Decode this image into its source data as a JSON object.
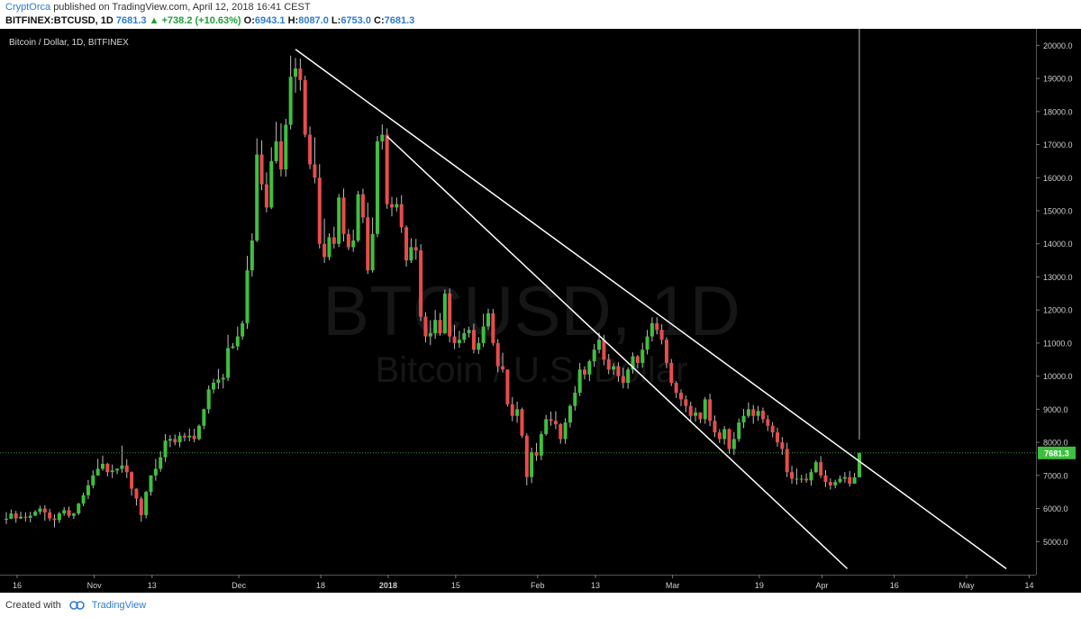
{
  "header": {
    "publisher": "CryptOrca",
    "published_text": "published on TradingView.com, April 12, 2018 16:41 CEST",
    "symbol": "BITFINEX:BTCUSD, 1D",
    "last": "7681.3",
    "change": "▲ +738.2 (+10.63%)",
    "o_label": "O:",
    "o": "6943.1",
    "h_label": "H:",
    "h": "8087.0",
    "l_label": "L:",
    "l": "6753.0",
    "c_label": "C:",
    "c": "7681.3"
  },
  "footer": {
    "created_with": "Created with",
    "brand": "TradingView"
  },
  "colors": {
    "background": "#000000",
    "up": "#3fbf3f",
    "down": "#e84c4c",
    "trendline": "#ffffff",
    "price_label": "#3fbf3f",
    "link": "#2e7bcf"
  },
  "chart_data": {
    "type": "candlestick",
    "title": "Bitcoin / Dollar, 1D, BITFINEX",
    "watermark_main": "BTCUSD, 1D",
    "watermark_sub": "Bitcoin / U.S. Dollar",
    "ylim": [
      4000,
      20500
    ],
    "y_ticks": [
      5000,
      6000,
      7000,
      8000,
      9000,
      10000,
      11000,
      12000,
      13000,
      14000,
      15000,
      16000,
      17000,
      18000,
      19000,
      20000
    ],
    "y_tick_labels": [
      "5000.0",
      "6000.0",
      "7000.0",
      "8000.0",
      "9000.0",
      "10000.0",
      "11000.0",
      "12000.0",
      "13000.0",
      "14000.0",
      "15000.0",
      "16000.0",
      "17000.0",
      "18000.0",
      "19000.0",
      "20000.0"
    ],
    "x_tick_labels": [
      {
        "label": "16",
        "day": 0
      },
      {
        "label": "Nov",
        "day": 16
      },
      {
        "label": "13",
        "day": 28
      },
      {
        "label": "Dec",
        "day": 46
      },
      {
        "label": "18",
        "day": 63
      },
      {
        "label": "2018",
        "day": 77
      },
      {
        "label": "15",
        "day": 91
      },
      {
        "label": "Feb",
        "day": 108
      },
      {
        "label": "13",
        "day": 120
      },
      {
        "label": "Mar",
        "day": 136
      },
      {
        "label": "19",
        "day": 154
      },
      {
        "label": "Apr",
        "day": 167
      },
      {
        "label": "16",
        "day": 182
      },
      {
        "label": "May",
        "day": 197
      },
      {
        "label": "14",
        "day": 210
      }
    ],
    "last_price": 7681.3,
    "last_price_label": "7681.3",
    "closes": [
      5690,
      5850,
      5700,
      5750,
      5720,
      5780,
      5900,
      6000,
      5880,
      5700,
      5650,
      5850,
      5950,
      5780,
      5850,
      6150,
      6400,
      6700,
      7000,
      7200,
      7350,
      7100,
      7150,
      7200,
      7300,
      7100,
      6600,
      6300,
      5800,
      6500,
      7000,
      7200,
      7550,
      8050,
      8100,
      8000,
      8200,
      8150,
      8200,
      8100,
      8500,
      9000,
      9600,
      9800,
      9900,
      9950,
      10850,
      10900,
      11200,
      11600,
      13200,
      14100,
      16700,
      15800,
      15100,
      16500,
      17100,
      16250,
      17600,
      19050,
      19300,
      18950,
      17300,
      16400,
      16000,
      14000,
      13600,
      14200,
      14000,
      15400,
      14300,
      13900,
      14100,
      15500,
      14800,
      13200,
      14300,
      17100,
      17300,
      15200,
      15100,
      15200,
      14500,
      13500,
      13900,
      13800,
      11800,
      11200,
      11300,
      11700,
      11300,
      12500,
      11200,
      11000,
      11100,
      11300,
      11400,
      10800,
      11000,
      11500,
      11900,
      11000,
      10300,
      10200,
      9150,
      8800,
      9000,
      8200,
      6950,
      7700,
      7600,
      8250,
      8700,
      8650,
      8550,
      8100,
      8600,
      9100,
      9500,
      10200,
      10050,
      10450,
      10800,
      11100,
      10500,
      10200,
      10300,
      10000,
      9800,
      10200,
      10600,
      10400,
      10800,
      11200,
      11600,
      11400,
      11100,
      10400,
      9800,
      9500,
      9300,
      9100,
      8800,
      8900,
      8700,
      9300,
      8650,
      8300,
      8100,
      8400,
      7800,
      8100,
      8600,
      8800,
      9000,
      8800,
      8950,
      8700,
      8500,
      8300,
      8000,
      7800,
      7100,
      6900,
      6900,
      6900,
      6850,
      7100,
      7400,
      7000,
      6800,
      6700,
      6800,
      6900,
      6950,
      6750,
      6943.1,
      7681.3
    ],
    "highs": [
      5890,
      5970,
      5930,
      5900,
      5880,
      5900,
      5950,
      6080,
      6100,
      5990,
      5820,
      5900,
      6040,
      6060,
      5870,
      6170,
      6480,
      6860,
      7150,
      7500,
      7600,
      7380,
      7330,
      7210,
      7900,
      7490,
      7120,
      6610,
      6360,
      6530,
      7000,
      7500,
      7730,
      8250,
      8220,
      8240,
      8310,
      8290,
      8420,
      8410,
      8540,
      9020,
      9720,
      9920,
      10220,
      10070,
      11250,
      11000,
      11500,
      11680,
      13640,
      14320,
      17190,
      17130,
      16160,
      16920,
      17690,
      17640,
      17780,
      19690,
      19620,
      19600,
      19080,
      17550,
      17220,
      16410,
      14760,
      14320,
      14520,
      15510,
      15670,
      14450,
      14430,
      15600,
      15670,
      15250,
      14800,
      17260,
      17610,
      17490,
      15420,
      15400,
      15470,
      14560,
      14170,
      14150,
      13990,
      11940,
      11690,
      12000,
      11910,
      12620,
      12650,
      11550,
      11370,
      11450,
      11500,
      11590,
      11180,
      11890,
      12040,
      12030,
      11120,
      10710,
      10200,
      9370,
      9230,
      9050,
      8270,
      7840,
      7980,
      8340,
      8830,
      8930,
      8940,
      8580,
      8730,
      9150,
      9700,
      10400,
      10300,
      10500,
      10970,
      11320,
      11250,
      10670,
      10390,
      10420,
      10260,
      10270,
      10720,
      10640,
      11010,
      11400,
      11780,
      11780,
      11570,
      11180,
      10520,
      9850,
      9600,
      9420,
      9230,
      9050,
      8910,
      9370,
      9470,
      8810,
      8400,
      8490,
      8420,
      8310,
      8720,
      9010,
      9210,
      9130,
      9100,
      9050,
      8820,
      8610,
      8440,
      8160,
      7990,
      7290,
      7210,
      7020,
      7060,
      7200,
      7460,
      7580,
      7160,
      6910,
      6870,
      7000,
      7100,
      7130,
      7080,
      8087
    ],
    "lows": [
      5530,
      5680,
      5570,
      5680,
      5610,
      5580,
      5780,
      5820,
      5630,
      5620,
      5430,
      5560,
      5780,
      5720,
      5680,
      5800,
      6070,
      6290,
      6610,
      6990,
      7140,
      6970,
      6920,
      7040,
      7080,
      6920,
      6390,
      6090,
      5600,
      5700,
      6390,
      6840,
      7110,
      7410,
      7850,
      7910,
      7850,
      8030,
      8030,
      8000,
      8060,
      8400,
      8870,
      9480,
      9610,
      9630,
      9850,
      10830,
      10780,
      11100,
      11430,
      13010,
      14050,
      15620,
      14950,
      15050,
      16430,
      16040,
      16030,
      17460,
      18570,
      18630,
      17220,
      16260,
      15830,
      13860,
      13420,
      13510,
      13860,
      13900,
      14070,
      13810,
      13760,
      14050,
      14630,
      13090,
      13130,
      14200,
      16850,
      15060,
      14830,
      14980,
      14330,
      13310,
      13420,
      13520,
      11670,
      11020,
      10940,
      11130,
      11230,
      11280,
      11020,
      10820,
      10860,
      11000,
      11170,
      10690,
      10670,
      10880,
      11390,
      10920,
      10120,
      10110,
      9080,
      8640,
      8590,
      8130,
      6700,
      6770,
      7440,
      7460,
      8200,
      8500,
      8400,
      7960,
      7960,
      8450,
      8960,
      9400,
      9900,
      9850,
      10280,
      10690,
      10330,
      10060,
      10040,
      9830,
      9630,
      9620,
      10080,
      10230,
      10260,
      10660,
      11050,
      11270,
      10960,
      10240,
      9700,
      9340,
      9090,
      8910,
      8600,
      8630,
      8580,
      8560,
      8490,
      8160,
      7980,
      7930,
      7660,
      7620,
      8020,
      8430,
      8740,
      8560,
      8650,
      8580,
      8340,
      8150,
      7870,
      7620,
      6950,
      6750,
      6720,
      6780,
      6780,
      6690,
      7070,
      6920,
      6650,
      6570,
      6610,
      6760,
      6780,
      6660,
      6753
    ]
  }
}
